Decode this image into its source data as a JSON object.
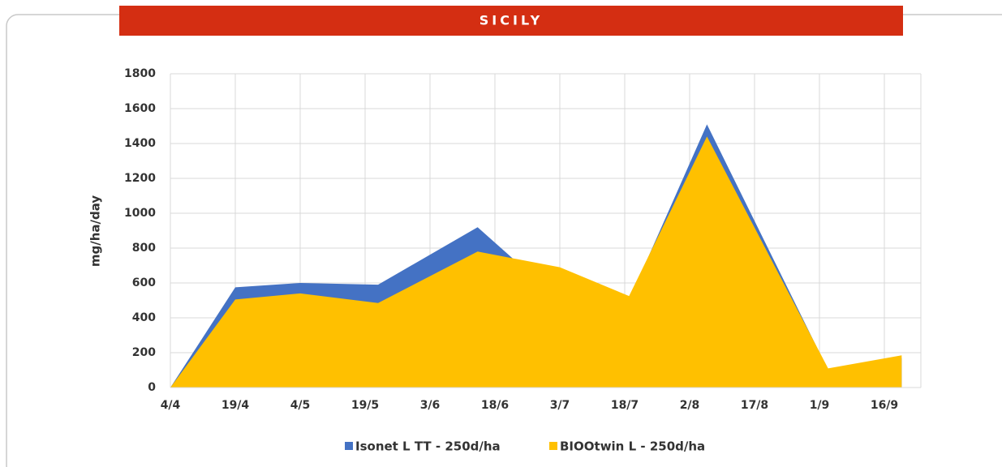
{
  "chart_data": {
    "type": "area",
    "title": "SICILY",
    "y_label": "mg/ha/day",
    "x": [
      "4/4",
      "19/4",
      "4/5",
      "22/5",
      "14/6",
      "3/7",
      "19/7",
      "6/8",
      "3/9",
      "20/9"
    ],
    "xticks": [
      "4/4",
      "19/4",
      "4/5",
      "19/5",
      "3/6",
      "18/6",
      "3/7",
      "18/7",
      "2/8",
      "17/8",
      "1/9",
      "16/9"
    ],
    "series": [
      {
        "name": "Isonet L TT - 250d/ha",
        "color": "#4472c4",
        "values": [
          0,
          575,
          600,
          590,
          920,
          500,
          500,
          1510,
          100,
          170
        ]
      },
      {
        "name": "BIOOtwin L - 250d/ha",
        "color": "#ffc000",
        "values": [
          0,
          505,
          540,
          485,
          780,
          690,
          525,
          1440,
          110,
          185
        ]
      }
    ],
    "ylim": [
      0,
      1800
    ],
    "yticks": [
      0,
      200,
      400,
      600,
      800,
      1000,
      1200,
      1400,
      1600,
      1800
    ],
    "grid": true,
    "legend": "bottom",
    "title_color": "#d42e12"
  }
}
